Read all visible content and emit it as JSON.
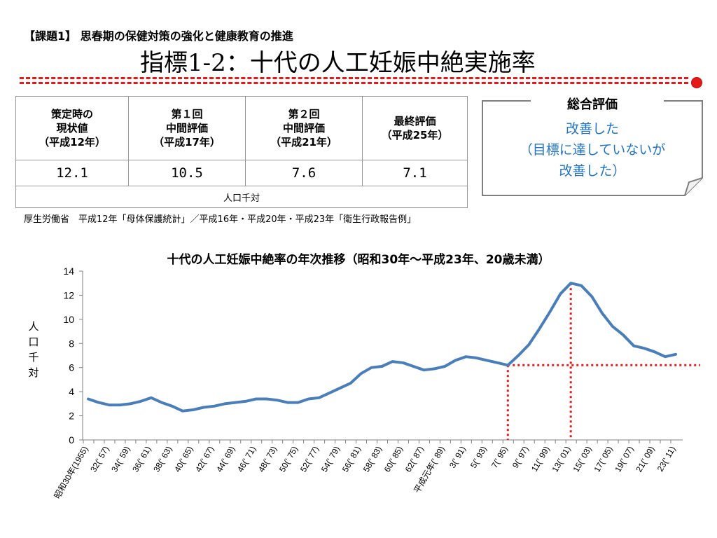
{
  "header": {
    "kadai": "【課題1】 思春期の保健対策の強化と健康教育の推進",
    "title": "指標1-2：十代の人工妊娠中絶実施率"
  },
  "table": {
    "headers": [
      [
        "策定時の",
        "現状値",
        "（平成12年）"
      ],
      [
        "第１回",
        "中間評価",
        "（平成17年）"
      ],
      [
        "第２回",
        "中間評価",
        "（平成21年）"
      ],
      [
        "最終評価",
        "（平成25年）"
      ]
    ],
    "values": [
      "12.1",
      "10.5",
      "7.6",
      "7.1"
    ],
    "unit": "人口千対"
  },
  "evaluation": {
    "title": "総合評価",
    "lines": [
      "改善した",
      "（目標に達していないが",
      "改善した）"
    ],
    "text_color": "#1f74c8"
  },
  "source": "厚生労働省　平成12年「母体保護統計」／平成16年・平成20年・平成23年「衛生行政報告例」",
  "chart_data": {
    "type": "line",
    "title": "十代の人工妊娠中絶率の年次推移（昭和30年～平成23年、20歳未満）",
    "ylabel": "人口千対",
    "ylim": [
      0,
      14
    ],
    "yticks": [
      0,
      2,
      4,
      6,
      8,
      10,
      12,
      14
    ],
    "x": [
      1955,
      1956,
      1957,
      1958,
      1959,
      1960,
      1961,
      1962,
      1963,
      1964,
      1965,
      1966,
      1967,
      1968,
      1969,
      1970,
      1971,
      1972,
      1973,
      1974,
      1975,
      1976,
      1977,
      1978,
      1979,
      1980,
      1981,
      1982,
      1983,
      1984,
      1985,
      1986,
      1987,
      1988,
      1989,
      1990,
      1991,
      1992,
      1993,
      1994,
      1995,
      1996,
      1997,
      1998,
      1999,
      2000,
      2001,
      2002,
      2003,
      2004,
      2005,
      2006,
      2007,
      2008,
      2009,
      2010,
      2011
    ],
    "values": [
      3.4,
      3.1,
      2.9,
      2.9,
      3.0,
      3.2,
      3.5,
      3.1,
      2.8,
      2.4,
      2.5,
      2.7,
      2.8,
      3.0,
      3.1,
      3.2,
      3.4,
      3.4,
      3.3,
      3.1,
      3.1,
      3.4,
      3.5,
      3.9,
      4.3,
      4.7,
      5.5,
      6.0,
      6.1,
      6.5,
      6.4,
      6.1,
      5.8,
      5.9,
      6.1,
      6.6,
      6.9,
      6.8,
      6.6,
      6.4,
      6.2,
      7.0,
      7.9,
      9.2,
      10.6,
      12.1,
      13.0,
      12.8,
      11.9,
      10.5,
      9.4,
      8.7,
      7.8,
      7.6,
      7.3,
      6.9,
      7.1
    ],
    "xtick_labels": [
      "昭和30年(1955)",
      "32(' 57)",
      "34(' 59)",
      "36(' 61)",
      "38(' 63)",
      "40(' 65)",
      "42(' 67)",
      "44(' 69)",
      "46(' 71)",
      "48(' 73)",
      "50(' 75)",
      "52(' 77)",
      "54(' 79)",
      "56(' 81)",
      "58(' 83)",
      "60(' 85)",
      "62(' 87)",
      "平成元年(' 89)",
      "3(' 91)",
      "5(' 93)",
      "7(' 95)",
      "9(' 97)",
      "11(' 99)",
      "13(' 01)",
      "15(' 03)",
      "17(' 05)",
      "19(' 07)",
      "21(' 09)",
      "23(' 11)"
    ],
    "series_color": "#4a7ebb",
    "reference_lines": {
      "color": "#e41a1a",
      "vertical_x": [
        1995,
        2001
      ],
      "horizontal_y": 6.2
    },
    "grid": false,
    "legend": "none"
  }
}
